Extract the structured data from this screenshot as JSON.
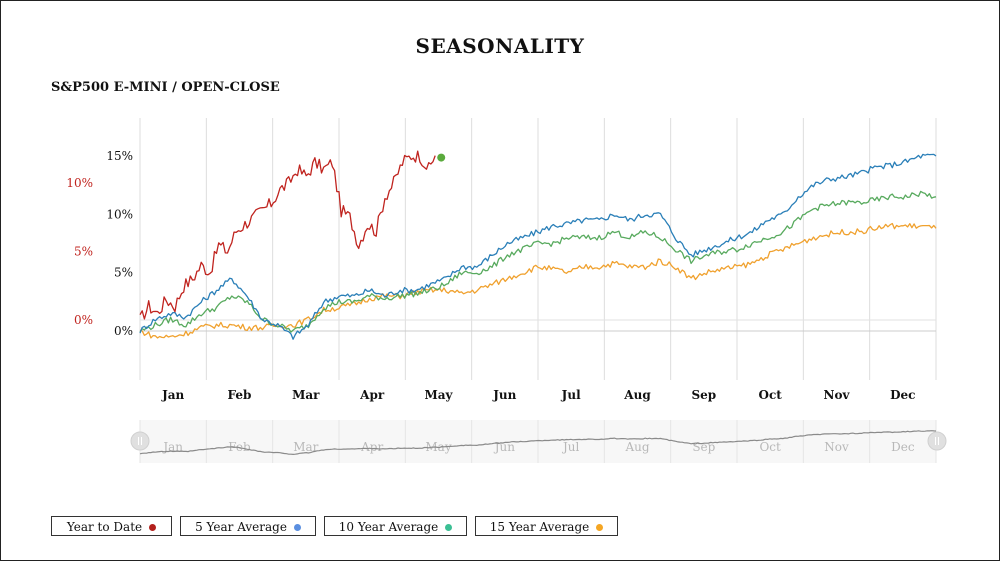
{
  "page": {
    "title": "SEASONALITY",
    "subtitle": "S&P500 E-MINI / OPEN-CLOSE"
  },
  "colors": {
    "ytd": "#c0241f",
    "avg5": "#2a7fb8",
    "avg10": "#58aa5e",
    "avg15": "#f0a12e",
    "ytd_dot": "#5aaa3c",
    "legend_dot_ytd": "#b3201c",
    "legend_dot_5": "#5b8fe0",
    "legend_dot_10": "#3bbf94",
    "legend_dot_15": "#f5a623",
    "grid": "#dddddd",
    "navigator_line": "#8a8a8a"
  },
  "legend": [
    {
      "label": "Year to Date",
      "dot_color": "#b3201c"
    },
    {
      "label": "5 Year Average",
      "dot_color": "#5b8fe0"
    },
    {
      "label": "10 Year Average",
      "dot_color": "#3bbf94"
    },
    {
      "label": "15 Year Average",
      "dot_color": "#f5a623"
    }
  ],
  "chart_data": {
    "type": "line",
    "title": "SEASONALITY",
    "subtitle": "S&P500 E-MINI / OPEN-CLOSE",
    "x_unit": "day_of_year",
    "months": [
      "Jan",
      "Feb",
      "Mar",
      "Apr",
      "May",
      "Jun",
      "Jul",
      "Aug",
      "Sep",
      "Oct",
      "Nov",
      "Dec"
    ],
    "grid": true,
    "legend_position": "bottom-left",
    "axes": {
      "left_ytd": {
        "ticks": [
          "0%",
          "5%",
          "10%"
        ],
        "ylim": [
          -1,
          14
        ],
        "color": "#c0241f"
      },
      "left_avg": {
        "ticks": [
          "0%",
          "5%",
          "10%",
          "15%"
        ],
        "ylim": [
          -2,
          15
        ]
      }
    },
    "series": [
      {
        "name": "Year to Date",
        "axis": "left_ytd",
        "x": [
          1,
          5,
          9,
          13,
          17,
          21,
          25,
          29,
          33,
          37,
          41,
          45,
          49,
          53,
          57,
          61,
          65,
          69,
          73,
          77,
          81,
          85,
          89,
          93,
          97,
          101,
          105,
          109,
          113,
          117,
          121,
          125,
          129,
          133,
          136
        ],
        "y": [
          0,
          1,
          0.5,
          1.5,
          1,
          2.5,
          3,
          4,
          3.5,
          5.5,
          5,
          6.5,
          7,
          7.5,
          8,
          8.5,
          9.5,
          10,
          11,
          10.5,
          11.5,
          11,
          11.5,
          8,
          7.5,
          5.5,
          7,
          6.5,
          9,
          10,
          11.5,
          12,
          12,
          11,
          12
        ]
      },
      {
        "name": "5 Year Average",
        "axis": "left_avg",
        "x": [
          1,
          8,
          15,
          22,
          29,
          36,
          43,
          50,
          57,
          64,
          71,
          78,
          85,
          92,
          99,
          106,
          113,
          120,
          127,
          134,
          141,
          148,
          155,
          162,
          169,
          176,
          183,
          190,
          197,
          204,
          211,
          218,
          225,
          232,
          239,
          246,
          253,
          260,
          267,
          274,
          281,
          288,
          295,
          302,
          309,
          316,
          323,
          330,
          337,
          344,
          351,
          358,
          365
        ],
        "y": [
          0,
          1,
          1.5,
          1.2,
          2.5,
          3.5,
          4.5,
          3,
          1,
          0.5,
          -0.5,
          0.5,
          2.5,
          3,
          3,
          3.5,
          3,
          3.5,
          3.5,
          4,
          4.5,
          5.5,
          5.5,
          6.5,
          7.5,
          8,
          8.5,
          9,
          9.2,
          9.5,
          9.5,
          10,
          9.5,
          10,
          10,
          8,
          6.5,
          7,
          7.5,
          8,
          8.5,
          9.5,
          10,
          11.5,
          12.5,
          13,
          13.2,
          13.5,
          14,
          14.2,
          14.5,
          15,
          15
        ]
      },
      {
        "name": "10 Year Average",
        "axis": "left_avg",
        "x": [
          1,
          8,
          15,
          22,
          29,
          36,
          43,
          50,
          57,
          64,
          71,
          78,
          85,
          92,
          99,
          106,
          113,
          120,
          127,
          134,
          141,
          148,
          155,
          162,
          169,
          176,
          183,
          190,
          197,
          204,
          211,
          218,
          225,
          232,
          239,
          246,
          253,
          260,
          267,
          274,
          281,
          288,
          295,
          302,
          309,
          316,
          323,
          330,
          337,
          344,
          351,
          358,
          365
        ],
        "y": [
          0,
          0.5,
          1,
          0.5,
          1.5,
          2,
          3,
          2.5,
          1,
          0.5,
          0,
          0.5,
          2,
          2.5,
          2.5,
          3,
          2.8,
          3,
          3.2,
          3.5,
          4,
          5,
          5,
          5.5,
          6.5,
          7,
          7.5,
          7.5,
          8,
          8,
          8,
          8.5,
          8,
          8.5,
          8,
          7,
          6,
          6.5,
          6.8,
          7,
          7.5,
          8,
          8.5,
          9.5,
          10.5,
          10.8,
          11,
          11,
          11.2,
          11.5,
          11.5,
          11.8,
          11.5
        ]
      },
      {
        "name": "15 Year Average",
        "axis": "left_avg",
        "x": [
          1,
          8,
          15,
          22,
          29,
          36,
          43,
          50,
          57,
          64,
          71,
          78,
          85,
          92,
          99,
          106,
          113,
          120,
          127,
          134,
          141,
          148,
          155,
          162,
          169,
          176,
          183,
          190,
          197,
          204,
          211,
          218,
          225,
          232,
          239,
          246,
          253,
          260,
          267,
          274,
          281,
          288,
          295,
          302,
          309,
          316,
          323,
          330,
          337,
          344,
          351,
          358,
          365
        ],
        "y": [
          0,
          -0.5,
          -0.5,
          -0.2,
          0.3,
          0.5,
          0.5,
          0.3,
          0.3,
          0.5,
          0.5,
          1,
          1.8,
          2,
          2.3,
          2.8,
          3,
          3,
          3.3,
          3.5,
          3.5,
          3.2,
          3.5,
          4,
          4.5,
          5,
          5.5,
          5.3,
          5,
          5.5,
          5.5,
          5.8,
          5.5,
          5.5,
          6,
          5.5,
          4.5,
          5,
          5.3,
          5.5,
          5.8,
          6.5,
          7,
          7.5,
          8,
          8.3,
          8.5,
          8.5,
          8.8,
          9,
          9,
          9,
          8.8
        ]
      }
    ],
    "ytd_end_marker": {
      "x": 136,
      "y": 12
    }
  }
}
